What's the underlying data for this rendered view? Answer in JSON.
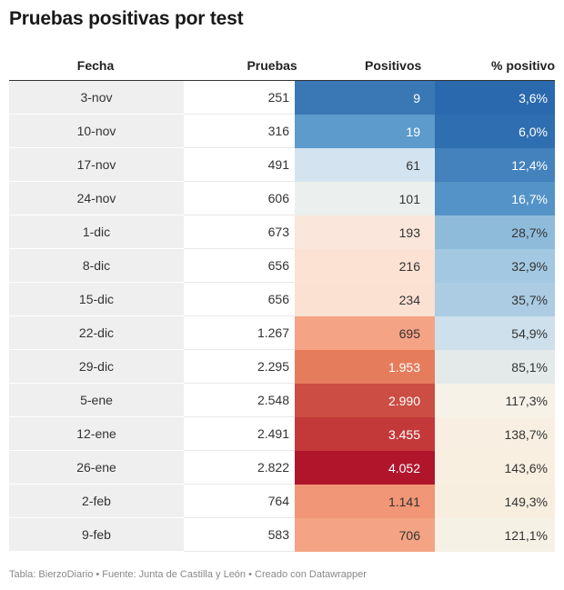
{
  "title": "Pruebas positivas por test",
  "footer": "Tabla: BierzoDiario • Fuente: Junta de Castilla y León • Creado con Datawrapper",
  "chart_data": {
    "type": "table",
    "title": "Pruebas positivas por test",
    "columns": [
      "Fecha",
      "Pruebas",
      "Positivos",
      "% positivo"
    ],
    "rows": [
      {
        "fecha": "3-nov",
        "pruebas": "251",
        "positivos": "9",
        "pct": "3,6%",
        "bg_pos": "#3a78b5",
        "fg_pos": "#ffffff",
        "bg_pct": "#2a69ad",
        "fg_pct": "#ffffff"
      },
      {
        "fecha": "10-nov",
        "pruebas": "316",
        "positivos": "19",
        "pct": "6,0%",
        "bg_pos": "#5c9bcc",
        "fg_pos": "#ffffff",
        "bg_pct": "#2f6eb0",
        "fg_pct": "#ffffff"
      },
      {
        "fecha": "17-nov",
        "pruebas": "491",
        "positivos": "61",
        "pct": "12,4%",
        "bg_pos": "#d3e4f0",
        "fg_pos": "#333333",
        "bg_pct": "#4382bd",
        "fg_pct": "#ffffff"
      },
      {
        "fecha": "24-nov",
        "pruebas": "606",
        "positivos": "101",
        "pct": "16,7%",
        "bg_pos": "#ebefed",
        "fg_pos": "#333333",
        "bg_pct": "#5393c7",
        "fg_pct": "#ffffff"
      },
      {
        "fecha": "1-dic",
        "pruebas": "673",
        "positivos": "193",
        "pct": "28,7%",
        "bg_pos": "#fae6da",
        "fg_pos": "#333333",
        "bg_pct": "#8fbbdb",
        "fg_pct": "#333333"
      },
      {
        "fecha": "8-dic",
        "pruebas": "656",
        "positivos": "216",
        "pct": "32,9%",
        "bg_pos": "#fbe2d3",
        "fg_pos": "#333333",
        "bg_pct": "#a3c8e1",
        "fg_pct": "#333333"
      },
      {
        "fecha": "15-dic",
        "pruebas": "656",
        "positivos": "234",
        "pct": "35,7%",
        "bg_pos": "#fbe1d2",
        "fg_pos": "#333333",
        "bg_pct": "#abcce3",
        "fg_pct": "#333333"
      },
      {
        "fecha": "22-dic",
        "pruebas": "1.267",
        "positivos": "695",
        "pct": "54,9%",
        "bg_pos": "#f4a384",
        "fg_pos": "#333333",
        "bg_pct": "#cde0ec",
        "fg_pct": "#333333"
      },
      {
        "fecha": "29-dic",
        "pruebas": "2.295",
        "positivos": "1.953",
        "pct": "85,1%",
        "bg_pos": "#e57c5c",
        "fg_pos": "#ffffff",
        "bg_pct": "#e4e9e9",
        "fg_pct": "#333333"
      },
      {
        "fecha": "5-ene",
        "pruebas": "2.548",
        "positivos": "2.990",
        "pct": "117,3%",
        "bg_pos": "#cc4d43",
        "fg_pos": "#ffffff",
        "bg_pct": "#f6f2e8",
        "fg_pct": "#333333"
      },
      {
        "fecha": "12-ene",
        "pruebas": "2.491",
        "positivos": "3.455",
        "pct": "138,7%",
        "bg_pos": "#c3393a",
        "fg_pos": "#ffffff",
        "bg_pct": "#f8efe2",
        "fg_pct": "#333333"
      },
      {
        "fecha": "26-ene",
        "pruebas": "2.822",
        "positivos": "4.052",
        "pct": "143,6%",
        "bg_pos": "#b0152c",
        "fg_pos": "#ffffff",
        "bg_pct": "#f8efe0",
        "fg_pct": "#333333"
      },
      {
        "fecha": "2-feb",
        "pruebas": "764",
        "positivos": "1.141",
        "pct": "149,3%",
        "bg_pos": "#f19676",
        "fg_pos": "#333333",
        "bg_pct": "#f7eedf",
        "fg_pct": "#333333"
      },
      {
        "fecha": "9-feb",
        "pruebas": "583",
        "positivos": "706",
        "pct": "121,1%",
        "bg_pos": "#f4a384",
        "fg_pos": "#333333",
        "bg_pct": "#f6f1e5",
        "fg_pct": "#333333"
      }
    ]
  }
}
